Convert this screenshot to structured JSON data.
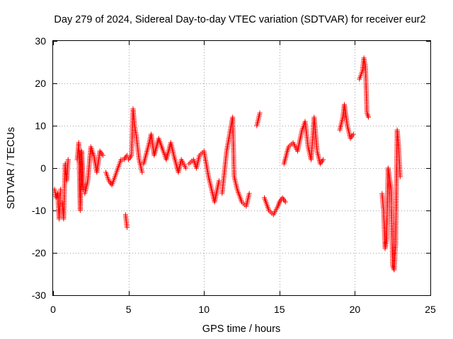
{
  "chart_data": {
    "type": "scatter",
    "title": "Day 279 of 2024, Sidereal Day-to-day VTEC variation (SDTVAR) for receiver eur2",
    "xlabel": "GPS time / hours",
    "ylabel": "SDTVAR / TECUs",
    "xlim": [
      0,
      25
    ],
    "ylim": [
      -30,
      30
    ],
    "xticks": [
      0,
      5,
      10,
      15,
      20,
      25
    ],
    "yticks": [
      -30,
      -20,
      -10,
      0,
      10,
      20,
      30
    ],
    "grid": true,
    "marker": "plus",
    "color": "#ff0000",
    "series": [
      {
        "name": "SDTVAR",
        "segments": [
          {
            "x": [
              0.1,
              0.2,
              0.3,
              0.4,
              0.5
            ],
            "y": [
              -5,
              -7,
              -6,
              -12,
              -5
            ]
          },
          {
            "x": [
              0.6,
              0.7,
              0.8,
              0.9,
              1.0
            ],
            "y": [
              -8,
              -12,
              1,
              -3,
              2
            ]
          },
          {
            "x": [
              1.6,
              1.7,
              1.8,
              1.9,
              2.0
            ],
            "y": [
              2,
              6,
              -10,
              4,
              -5
            ]
          },
          {
            "x": [
              2.1,
              2.3,
              2.5,
              2.7,
              2.9,
              3.1,
              3.3
            ],
            "y": [
              -6,
              -3,
              5,
              3,
              -1,
              4,
              3
            ]
          },
          {
            "x": [
              3.5,
              3.7,
              3.9,
              4.1,
              4.3,
              4.5,
              4.7,
              4.9
            ],
            "y": [
              -1,
              -3,
              -4,
              -2,
              0,
              2,
              2,
              3
            ]
          },
          {
            "x": [
              4.8,
              4.9
            ],
            "y": [
              -11,
              -14
            ]
          },
          {
            "x": [
              5.0,
              5.2,
              5.3,
              5.4,
              5.5,
              5.6,
              5.7,
              5.9
            ],
            "y": [
              2,
              3,
              14,
              10,
              8,
              5,
              2,
              -1
            ]
          },
          {
            "x": [
              6.0,
              6.3,
              6.5,
              6.7,
              7.0,
              7.3,
              7.5,
              7.8,
              8.0,
              8.3,
              8.5,
              8.8
            ],
            "y": [
              1,
              5,
              8,
              3,
              7,
              4,
              2,
              6,
              3,
              -1,
              2,
              0
            ]
          },
          {
            "x": [
              9.0,
              9.3,
              9.5,
              9.7,
              10.0,
              10.3,
              10.5,
              10.7,
              11.0
            ],
            "y": [
              1,
              2,
              0,
              3,
              4,
              -2,
              -5,
              -8,
              -3
            ]
          },
          {
            "x": [
              11.2,
              11.5,
              11.7,
              11.9,
              12.0,
              12.2,
              12.5,
              12.8,
              13.0
            ],
            "y": [
              -6,
              4,
              8,
              12,
              -2,
              -5,
              -8,
              -9,
              -6
            ]
          },
          {
            "x": [
              13.5,
              13.7
            ],
            "y": [
              10,
              13
            ]
          },
          {
            "x": [
              14.0,
              14.3,
              14.6,
              14.9,
              15.0,
              15.2,
              15.4
            ],
            "y": [
              -7,
              -10,
              -11,
              -9,
              -8,
              -7,
              -8
            ]
          },
          {
            "x": [
              15.3,
              15.6,
              15.9,
              16.2,
              16.5,
              16.7,
              16.9,
              17.1,
              17.3,
              17.5,
              17.7,
              17.9
            ],
            "y": [
              1,
              5,
              6,
              4,
              9,
              11,
              5,
              2,
              12,
              4,
              1,
              2
            ]
          },
          {
            "x": [
              19.0,
              19.2,
              19.3,
              19.5,
              19.7,
              19.9
            ],
            "y": [
              9,
              12,
              15,
              10,
              7,
              8
            ]
          },
          {
            "x": [
              20.3,
              20.5,
              20.6,
              20.7,
              20.8,
              20.9
            ],
            "y": [
              21,
              23,
              26,
              24,
              13,
              12
            ]
          },
          {
            "x": [
              21.8,
              21.9,
              22.0,
              22.1,
              22.2,
              22.4,
              22.5,
              22.6
            ],
            "y": [
              -6,
              -10,
              -19,
              -17,
              0,
              -5,
              -23,
              -24
            ]
          },
          {
            "x": [
              22.6,
              22.7,
              22.8,
              22.9,
              23.0
            ],
            "y": [
              -24,
              -18,
              9,
              5,
              -2
            ]
          }
        ]
      }
    ]
  }
}
